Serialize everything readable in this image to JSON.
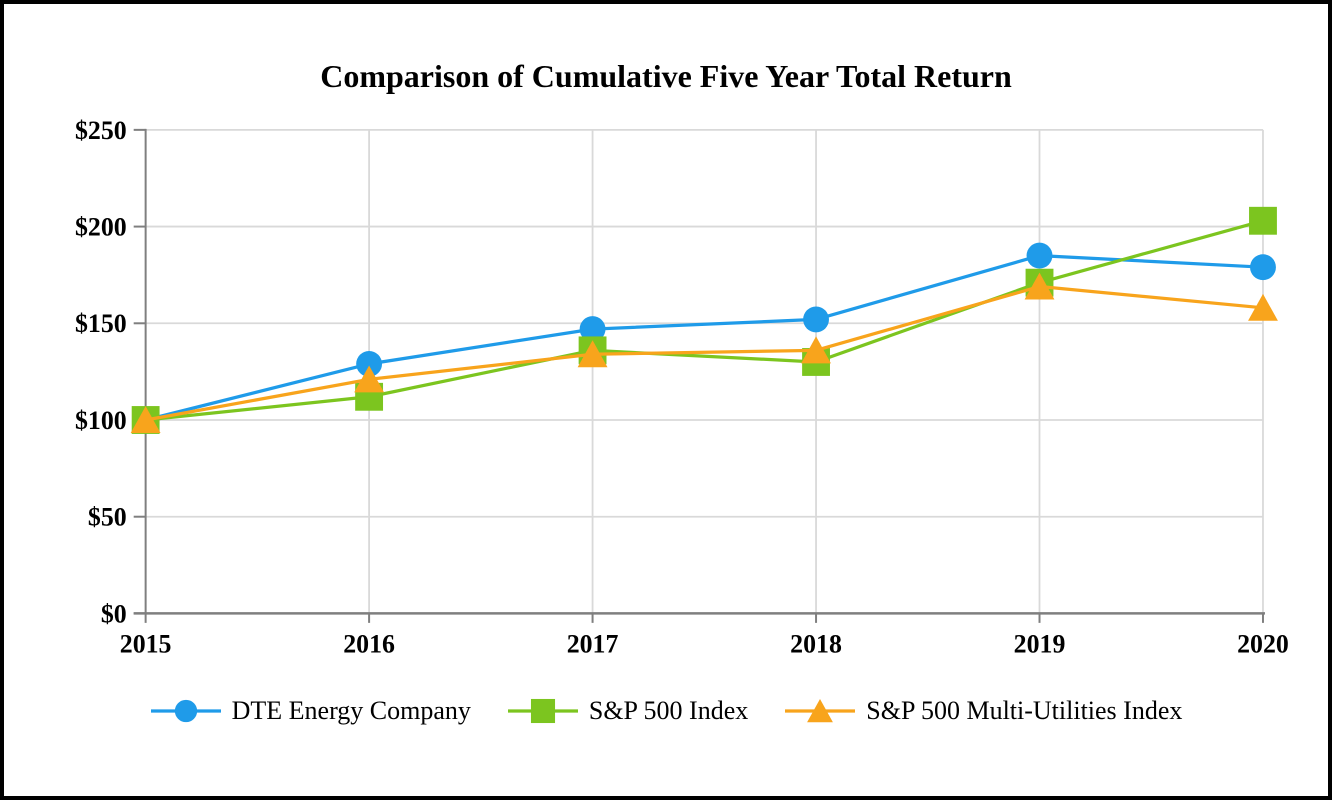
{
  "chart_data": {
    "type": "line",
    "title": "Comparison of Cumulative Five Year Total Return",
    "x_categories": [
      "2015",
      "2016",
      "2017",
      "2018",
      "2019",
      "2020"
    ],
    "y_tick_labels": [
      "$0",
      "$50",
      "$100",
      "$150",
      "$200",
      "$250"
    ],
    "y_tick_values": [
      0,
      50,
      100,
      150,
      200,
      250
    ],
    "ylim": [
      0,
      250
    ],
    "grid": true,
    "legend_position": "bottom",
    "series": [
      {
        "name": "DTE Energy Company",
        "marker": "circle",
        "color": "#1F9BE9",
        "values": [
          100,
          129,
          147,
          152,
          185,
          179
        ]
      },
      {
        "name": "S&P 500 Index",
        "marker": "square",
        "color": "#7CC51F",
        "values": [
          100,
          112,
          136,
          130,
          171,
          203
        ]
      },
      {
        "name": "S&P 500 Multi-Utilities Index",
        "marker": "triangle",
        "color": "#F8A41C",
        "values": [
          100,
          121,
          134,
          136,
          169,
          158
        ]
      }
    ]
  },
  "styles": {
    "axis_color": "#7F7F7F",
    "gridline_color": "#D9D9D9",
    "text_color": "#000000",
    "background": "#FFFFFF",
    "frame_border": "#000000"
  }
}
